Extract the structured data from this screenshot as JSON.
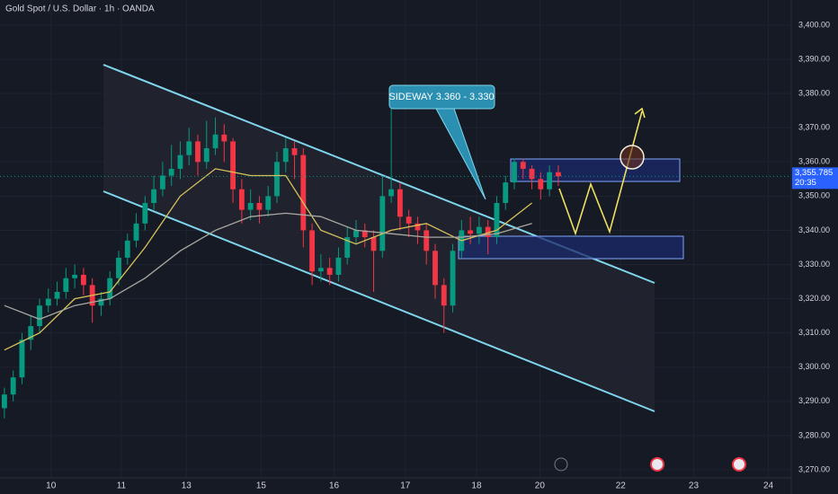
{
  "chart_data": {
    "type": "candlestick",
    "title": "Gold Spot / U.S. Dollar · 1h · OANDA",
    "annotation": "SIDEWAY 3.360 - 3.330",
    "last_label": "3,355.785",
    "countdown": "20:35",
    "up_color": "#089981",
    "down_color": "#f23645",
    "x": [
      0,
      1,
      2,
      3,
      4,
      5,
      6,
      7,
      8,
      9,
      10,
      11,
      12,
      13,
      14,
      15,
      16,
      17,
      18,
      19,
      20,
      21,
      22,
      23,
      24,
      25,
      26,
      27,
      28,
      29,
      30,
      31,
      32,
      33,
      34,
      35,
      36,
      37,
      38,
      39,
      40,
      41,
      42,
      43,
      44,
      45,
      46,
      47,
      48,
      49,
      50,
      51,
      52,
      53,
      54,
      55,
      56,
      57,
      58,
      59,
      60,
      61,
      62,
      63
    ],
    "open": [
      3288,
      3292,
      3297,
      3308,
      3312,
      3318,
      3320,
      3322,
      3326,
      3327,
      3324,
      3318,
      3320,
      3326,
      3332,
      3337,
      3342,
      3348,
      3352,
      3356,
      3358,
      3362,
      3366,
      3360,
      3364,
      3368,
      3366,
      3352,
      3346,
      3348,
      3346,
      3350,
      3360,
      3364,
      3362,
      3340,
      3328,
      3329,
      3327,
      3332,
      3338,
      3340,
      3338,
      3334,
      3350,
      3352,
      3344,
      3342,
      3340,
      3334,
      3324,
      3318,
      3334,
      3340,
      3339,
      3341,
      3338,
      3348,
      3354,
      3360,
      3358,
      3355,
      3352,
      3357
    ],
    "high": [
      3294,
      3299,
      3310,
      3315,
      3320,
      3323,
      3325,
      3329,
      3330,
      3329,
      3326,
      3322,
      3328,
      3334,
      3339,
      3345,
      3350,
      3356,
      3360,
      3365,
      3366,
      3370,
      3368,
      3372,
      3373,
      3371,
      3367,
      3355,
      3352,
      3350,
      3353,
      3363,
      3367,
      3366,
      3364,
      3342,
      3333,
      3332,
      3335,
      3341,
      3343,
      3342,
      3340,
      3356,
      3378,
      3354,
      3346,
      3344,
      3342,
      3336,
      3326,
      3336,
      3343,
      3344,
      3344,
      3343,
      3350,
      3356,
      3361,
      3361,
      3359,
      3357,
      3359,
      3359
    ],
    "low": [
      3285,
      3290,
      3295,
      3305,
      3310,
      3316,
      3318,
      3320,
      3323,
      3321,
      3313,
      3315,
      3318,
      3324,
      3330,
      3335,
      3340,
      3346,
      3350,
      3353,
      3355,
      3359,
      3356,
      3358,
      3362,
      3360,
      3348,
      3342,
      3343,
      3342,
      3344,
      3348,
      3357,
      3355,
      3335,
      3324,
      3325,
      3324,
      3325,
      3330,
      3336,
      3335,
      3322,
      3332,
      3348,
      3340,
      3338,
      3336,
      3330,
      3320,
      3310,
      3316,
      3332,
      3336,
      3336,
      3333,
      3336,
      3346,
      3352,
      3355,
      3352,
      3349,
      3350,
      3353
    ],
    "close": [
      3292,
      3297,
      3308,
      3312,
      3318,
      3320,
      3322,
      3326,
      3327,
      3324,
      3318,
      3320,
      3326,
      3332,
      3337,
      3342,
      3348,
      3352,
      3356,
      3358,
      3362,
      3366,
      3360,
      3364,
      3368,
      3366,
      3352,
      3346,
      3348,
      3346,
      3350,
      3360,
      3364,
      3362,
      3340,
      3328,
      3329,
      3327,
      3332,
      3338,
      3340,
      3338,
      3334,
      3350,
      3352,
      3344,
      3342,
      3340,
      3334,
      3324,
      3318,
      3334,
      3340,
      3339,
      3341,
      3338,
      3348,
      3354,
      3360,
      3358,
      3355,
      3352,
      3357,
      3355.785
    ],
    "overlays": [
      {
        "color": "#d8c25a",
        "x": [
          0,
          4,
          8,
          12,
          16,
          20,
          24,
          28,
          32,
          36,
          40,
          44,
          48,
          52,
          56,
          60
        ],
        "values": [
          3305,
          3310,
          3320,
          3322,
          3335,
          3350,
          3358,
          3356,
          3356,
          3340,
          3336,
          3340,
          3342,
          3337,
          3340,
          3348
        ]
      },
      {
        "color": "#a9a9a0",
        "x": [
          0,
          4,
          8,
          12,
          16,
          20,
          24,
          28,
          32,
          36,
          40,
          44,
          48,
          52,
          56,
          60
        ],
        "values": [
          3318,
          3314,
          3318,
          3320,
          3326,
          3334,
          3340,
          3344,
          3345,
          3344,
          3340,
          3339,
          3338,
          3338,
          3339,
          3342
        ]
      }
    ],
    "xlim": [
      -0.5,
      89.5
    ],
    "xticks": [
      {
        "value": 5.3,
        "label": "10"
      },
      {
        "value": 13.3,
        "label": "11"
      },
      {
        "value": 20.7,
        "label": "13"
      },
      {
        "value": 29.2,
        "label": "15"
      },
      {
        "value": 37.5,
        "label": "16"
      },
      {
        "value": 45.6,
        "label": "17"
      },
      {
        "value": 53.7,
        "label": "18"
      },
      {
        "value": 60.9,
        "label": "20"
      },
      {
        "value": 70.1,
        "label": "22"
      },
      {
        "value": 78.4,
        "label": "23"
      },
      {
        "value": 86.9,
        "label": "24"
      }
    ],
    "ylim": [
      3262.9,
      3407.35
    ],
    "yticks": [
      {
        "value": 3270,
        "label": "3,270.00"
      },
      {
        "value": 3280,
        "label": "3,280.00"
      },
      {
        "value": 3290,
        "label": "3,290.00"
      },
      {
        "value": 3300,
        "label": "3,300.00"
      },
      {
        "value": 3310,
        "label": "3,310.00"
      },
      {
        "value": 3320,
        "label": "3,320.00"
      },
      {
        "value": 3330,
        "label": "3,330.00"
      },
      {
        "value": 3340,
        "label": "3,340.00"
      },
      {
        "value": 3350,
        "label": "3,350.00"
      },
      {
        "value": 3360,
        "label": "3,360.00"
      },
      {
        "value": 3370,
        "label": "3,370.00"
      },
      {
        "value": 3380,
        "label": "3,380.00"
      },
      {
        "value": 3390,
        "label": "3,390.00"
      },
      {
        "value": 3400,
        "label": "3,400.00"
      }
    ],
    "grid": true
  }
}
